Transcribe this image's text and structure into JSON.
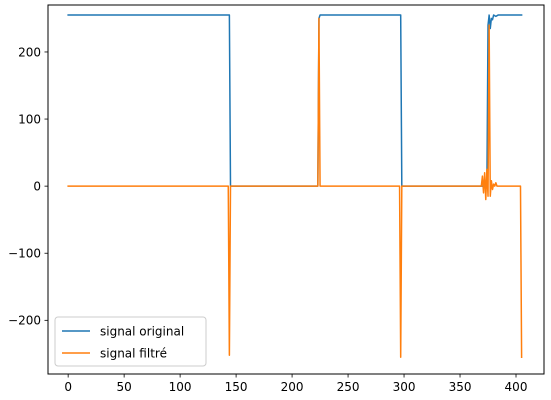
{
  "chart_data": {
    "type": "line",
    "title": "",
    "xlabel": "",
    "ylabel": "",
    "xlim": [
      -18,
      425
    ],
    "ylim": [
      -280,
      270
    ],
    "xticks": [
      0,
      50,
      100,
      150,
      200,
      250,
      300,
      350,
      400
    ],
    "yticks": [
      -200,
      -100,
      0,
      100,
      200
    ],
    "xtick_labels": [
      "0",
      "50",
      "100",
      "150",
      "200",
      "250",
      "300",
      "350",
      "400"
    ],
    "ytick_labels": [
      "−200",
      "−100",
      "0",
      "100",
      "200"
    ],
    "grid": false,
    "legend_position": "lower-left",
    "series": [
      {
        "name": "signal original",
        "color": "#1f77b4",
        "points": [
          [
            0,
            255
          ],
          [
            144,
            255
          ],
          [
            145,
            0
          ],
          [
            223,
            0
          ],
          [
            224,
            250
          ],
          [
            225,
            255
          ],
          [
            297,
            255
          ],
          [
            298,
            0
          ],
          [
            372,
            0
          ],
          [
            373,
            5
          ],
          [
            374,
            2
          ],
          [
            375,
            240
          ],
          [
            376,
            255
          ],
          [
            377,
            235
          ],
          [
            378,
            250
          ],
          [
            379,
            248
          ],
          [
            380,
            255
          ],
          [
            382,
            253
          ],
          [
            384,
            255
          ],
          [
            405,
            255
          ]
        ]
      },
      {
        "name": "signal filtré",
        "color": "#ff7f0e",
        "points": [
          [
            0,
            0
          ],
          [
            143,
            0
          ],
          [
            144,
            -252
          ],
          [
            145,
            0
          ],
          [
            223,
            0
          ],
          [
            224,
            250
          ],
          [
            225,
            0
          ],
          [
            296,
            0
          ],
          [
            297,
            -255
          ],
          [
            298,
            0
          ],
          [
            369,
            0
          ],
          [
            370,
            15
          ],
          [
            371,
            -10
          ],
          [
            372,
            20
          ],
          [
            373,
            -20
          ],
          [
            374,
            25
          ],
          [
            375,
            -15
          ],
          [
            376,
            240
          ],
          [
            377,
            -15
          ],
          [
            378,
            8
          ],
          [
            379,
            -5
          ],
          [
            380,
            3
          ],
          [
            381,
            0
          ],
          [
            382,
            5
          ],
          [
            383,
            0
          ],
          [
            404,
            0
          ],
          [
            405,
            -255
          ]
        ]
      }
    ]
  }
}
